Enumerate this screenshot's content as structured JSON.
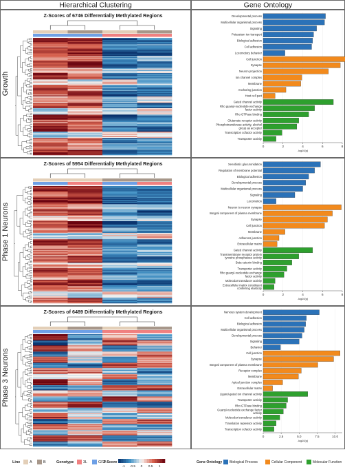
{
  "header": {
    "left": "Hierarchical Clustering",
    "right": "Gene Ontology"
  },
  "chart_data": [
    {
      "type": "heatmap",
      "panel_label": "Growth",
      "title": "Z-Scores of 6746 Differentially Methylated Regions",
      "columns": [
        {
          "line": "A",
          "genotype": "3L"
        },
        {
          "line": "B",
          "genotype": "3L"
        },
        {
          "line": "A",
          "genotype": "GFP"
        },
        {
          "line": "B",
          "genotype": "GFP"
        }
      ],
      "column_order": [
        2,
        3,
        0,
        1
      ],
      "row_profiles": [
        [
          -1.1,
          -0.9,
          1.0,
          1.0
        ],
        [
          -0.8,
          -0.6,
          0.7,
          0.7
        ],
        [
          -1.2,
          -0.9,
          0.8,
          1.1
        ],
        [
          -0.5,
          -0.3,
          0.4,
          0.4
        ],
        [
          -1.0,
          -1.1,
          0.9,
          1.2
        ],
        [
          -0.3,
          -0.2,
          0.3,
          0.2
        ],
        [
          -0.9,
          -0.7,
          1.1,
          0.6
        ],
        [
          0.2,
          -0.4,
          0.2,
          -0.1
        ],
        [
          -0.6,
          -0.8,
          0.9,
          0.5
        ],
        [
          -1.2,
          -1.0,
          0.7,
          1.2
        ],
        [
          -0.4,
          -0.1,
          0.3,
          0.2
        ],
        [
          -0.7,
          -0.9,
          0.8,
          0.8
        ],
        [
          -0.2,
          0.1,
          -0.2,
          0.3
        ],
        [
          -1.1,
          -0.8,
          1.0,
          0.9
        ],
        [
          -0.6,
          -0.5,
          0.6,
          0.5
        ],
        [
          -0.9,
          -1.1,
          1.2,
          0.8
        ],
        [
          0.3,
          0.2,
          -0.3,
          -0.2
        ],
        [
          -0.8,
          -0.6,
          0.7,
          0.7
        ],
        [
          -0.4,
          -0.7,
          0.6,
          0.5
        ],
        [
          -1.0,
          -0.9,
          0.9,
          1.0
        ]
      ]
    },
    {
      "type": "heatmap",
      "panel_label": "Phase 1 Neurons",
      "title": "Z-Scores of 5954 Differentially Methylated Regions",
      "columns": [
        {
          "line": "A",
          "genotype": "3L"
        },
        {
          "line": "B",
          "genotype": "3L"
        },
        {
          "line": "A",
          "genotype": "GFP"
        },
        {
          "line": "B",
          "genotype": "GFP"
        }
      ],
      "column_order": [
        2,
        0,
        3,
        1
      ],
      "row_profiles": [
        [
          1.0,
          -1.0,
          0.9,
          -0.9
        ],
        [
          0.8,
          -0.7,
          0.7,
          -0.8
        ],
        [
          1.1,
          -0.9,
          1.0,
          -1.1
        ],
        [
          0.5,
          -0.4,
          0.4,
          -0.5
        ],
        [
          0.9,
          -1.1,
          0.8,
          -0.6
        ],
        [
          0.3,
          -0.2,
          0.2,
          -0.3
        ],
        [
          1.2,
          -0.8,
          0.9,
          -1.0
        ],
        [
          0.6,
          -0.6,
          0.5,
          -0.5
        ],
        [
          -0.2,
          0.3,
          -0.2,
          0.1
        ],
        [
          0.9,
          -0.9,
          1.1,
          -0.8
        ],
        [
          0.7,
          -0.5,
          0.6,
          -0.7
        ],
        [
          0.4,
          -0.3,
          0.5,
          -0.6
        ],
        [
          1.0,
          -1.0,
          0.8,
          -0.9
        ],
        [
          0.2,
          -0.1,
          0.3,
          -0.4
        ],
        [
          0.8,
          -0.8,
          0.9,
          -0.9
        ],
        [
          0.6,
          -0.7,
          0.4,
          -0.3
        ],
        [
          1.1,
          -1.1,
          1.0,
          -1.0
        ],
        [
          0.5,
          -0.5,
          0.6,
          -0.6
        ],
        [
          -0.3,
          0.2,
          -0.1,
          0.2
        ],
        [
          0.9,
          -0.8,
          0.7,
          -0.8
        ]
      ]
    },
    {
      "type": "heatmap",
      "panel_label": "Phase 3 Neurons",
      "title": "Z-Scores of 6489 Differentially Methylated Regions",
      "columns": [
        {
          "line": "A",
          "genotype": "3L"
        },
        {
          "line": "B",
          "genotype": "3L"
        },
        {
          "line": "A",
          "genotype": "GFP"
        },
        {
          "line": "B",
          "genotype": "GFP"
        }
      ],
      "column_order": [
        2,
        3,
        0,
        1
      ],
      "row_profiles": [
        [
          0.3,
          -0.6,
          1.0,
          -0.7
        ],
        [
          0.8,
          0.5,
          -1.0,
          -0.3
        ],
        [
          -0.7,
          -0.5,
          0.9,
          0.4
        ],
        [
          0.2,
          0.6,
          -0.8,
          0.1
        ],
        [
          -1.0,
          0.3,
          0.8,
          -0.1
        ],
        [
          0.9,
          0.7,
          -0.7,
          -0.9
        ],
        [
          -0.4,
          -0.8,
          0.6,
          0.6
        ],
        [
          0.5,
          -0.2,
          -0.3,
          0.1
        ],
        [
          -0.9,
          -0.6,
          1.1,
          0.4
        ],
        [
          0.6,
          0.9,
          -0.9,
          -0.6
        ],
        [
          -0.2,
          -0.5,
          0.3,
          0.4
        ],
        [
          1.0,
          0.4,
          -0.6,
          -0.8
        ],
        [
          -0.8,
          -0.9,
          0.7,
          1.0
        ],
        [
          0.1,
          0.5,
          -0.4,
          -0.2
        ],
        [
          -0.6,
          -0.3,
          0.9,
          0.1
        ],
        [
          0.7,
          0.8,
          -1.0,
          -0.5
        ],
        [
          -0.5,
          -0.7,
          0.5,
          0.7
        ],
        [
          0.4,
          0.2,
          -0.6,
          0.0
        ],
        [
          -1.0,
          -0.8,
          1.0,
          0.8
        ],
        [
          0.6,
          0.7,
          -0.8,
          -0.5
        ]
      ]
    },
    {
      "type": "bar",
      "orientation": "horizontal",
      "panel_label": "Growth",
      "xlabel": "-log10(p)",
      "xlim": [
        0,
        8
      ],
      "xticks": [
        0,
        2,
        4,
        6,
        8
      ],
      "categories": [
        {
          "label": "Developmental process",
          "value": 6.3,
          "group": "bp"
        },
        {
          "label": "Multicellular organismal process",
          "value": 6.2,
          "group": "bp"
        },
        {
          "label": "Signaling",
          "value": 5.4,
          "group": "bp"
        },
        {
          "label": "Potassium ion transport",
          "value": 5.1,
          "group": "bp"
        },
        {
          "label": "Biological adhesion",
          "value": 5.0,
          "group": "bp"
        },
        {
          "label": "Cell adhesion",
          "value": 4.9,
          "group": "bp"
        },
        {
          "label": "Locomotory behavior",
          "value": 2.2,
          "group": "bp"
        },
        {
          "label": "Cell junction",
          "value": 8.3,
          "group": "cc"
        },
        {
          "label": "Synapse",
          "value": 7.8,
          "group": "cc"
        },
        {
          "label": "Neuron projection",
          "value": 6.6,
          "group": "cc"
        },
        {
          "label": "Ion channel complex",
          "value": 3.9,
          "group": "cc"
        },
        {
          "label": "Membrane",
          "value": 3.8,
          "group": "cc"
        },
        {
          "label": "Anchoring junction",
          "value": 2.3,
          "group": "cc"
        },
        {
          "label": "Host cell part",
          "value": 1.2,
          "group": "cc"
        },
        {
          "label": "Gated channel activity",
          "value": 7.1,
          "group": "mf"
        },
        {
          "label": "Rho guanyl-nucleotide exchange factor activity",
          "value": 5.2,
          "group": "mf"
        },
        {
          "label": "Rho GTPase binding",
          "value": 4.6,
          "group": "mf"
        },
        {
          "label": "Glutamate receptor activity",
          "value": 3.6,
          "group": "mf"
        },
        {
          "label": "Phosphotransferase activity, alcohol group as acceptor",
          "value": 3.4,
          "group": "mf"
        },
        {
          "label": "Transcription cofactor activity",
          "value": 1.9,
          "group": "mf"
        },
        {
          "label": "Transporter activity",
          "value": 1.3,
          "group": "mf"
        }
      ]
    },
    {
      "type": "bar",
      "orientation": "horizontal",
      "panel_label": "Phase 1 Neurons",
      "xlabel": "-log10(p)",
      "xlim": [
        0,
        8
      ],
      "xticks": [
        0,
        2,
        4,
        6,
        8
      ],
      "categories": [
        {
          "label": "Xenobiotic glucuronidation",
          "value": 5.8,
          "group": "bp"
        },
        {
          "label": "Regulation of membrane potential",
          "value": 5.2,
          "group": "bp"
        },
        {
          "label": "Biological adhesion",
          "value": 4.6,
          "group": "bp"
        },
        {
          "label": "Developmental process",
          "value": 4.3,
          "group": "bp"
        },
        {
          "label": "Multicellular organismal process",
          "value": 4.0,
          "group": "bp"
        },
        {
          "label": "Signaling",
          "value": 3.2,
          "group": "bp"
        },
        {
          "label": "Locomotion",
          "value": 1.3,
          "group": "bp"
        },
        {
          "label": "Neuron to neuron synapse",
          "value": 7.9,
          "group": "cc"
        },
        {
          "label": "Integral component of plasma membrane",
          "value": 7.0,
          "group": "cc"
        },
        {
          "label": "Synapse",
          "value": 6.5,
          "group": "cc"
        },
        {
          "label": "Cell junction",
          "value": 6.2,
          "group": "cc"
        },
        {
          "label": "Membrane",
          "value": 2.2,
          "group": "cc"
        },
        {
          "label": "Adherens junction",
          "value": 1.6,
          "group": "cc"
        },
        {
          "label": "Extracellular matrix",
          "value": 1.4,
          "group": "cc"
        },
        {
          "label": "Gated channel activity",
          "value": 5.0,
          "group": "mf"
        },
        {
          "label": "Transmembrane receptor protein tyrosine phosphatase activity",
          "value": 3.6,
          "group": "mf"
        },
        {
          "label": "Beta-catenin binding",
          "value": 2.9,
          "group": "mf"
        },
        {
          "label": "Transporter activity",
          "value": 2.4,
          "group": "mf"
        },
        {
          "label": "Rho guanyl-nucleotide exchange factor activity",
          "value": 2.1,
          "group": "mf"
        },
        {
          "label": "Molecular transducer activity",
          "value": 1.2,
          "group": "mf"
        },
        {
          "label": "Extracellular matrix constituent conferring elasticity",
          "value": 1.1,
          "group": "mf"
        }
      ]
    },
    {
      "type": "bar",
      "orientation": "horizontal",
      "panel_label": "Phase 3 Neurons",
      "xlabel": "-log10(p)",
      "xlim": [
        0,
        11
      ],
      "xticks": [
        0,
        2.5,
        5,
        7.5,
        10
      ],
      "xticklabels": [
        "0",
        "2.5",
        "5.0",
        "7.5",
        "10.0"
      ],
      "categories": [
        {
          "label": "Nervous system development",
          "value": 7.8,
          "group": "bp"
        },
        {
          "label": "Cell adhesion",
          "value": 6.0,
          "group": "bp"
        },
        {
          "label": "Biological adhesion",
          "value": 5.9,
          "group": "bp"
        },
        {
          "label": "Multicellular organismal process",
          "value": 5.7,
          "group": "bp"
        },
        {
          "label": "Developmental process",
          "value": 5.4,
          "group": "bp"
        },
        {
          "label": "Signaling",
          "value": 5.0,
          "group": "bp"
        },
        {
          "label": "Behavior",
          "value": 2.4,
          "group": "bp"
        },
        {
          "label": "Cell junction",
          "value": 10.7,
          "group": "cc"
        },
        {
          "label": "Synapse",
          "value": 9.8,
          "group": "cc"
        },
        {
          "label": "Integral component of plasma membrane",
          "value": 7.6,
          "group": "cc"
        },
        {
          "label": "Receptor complex",
          "value": 5.3,
          "group": "cc"
        },
        {
          "label": "Membrane",
          "value": 4.9,
          "group": "cc"
        },
        {
          "label": "Apical junction complex",
          "value": 2.7,
          "group": "cc"
        },
        {
          "label": "Extracellular matrix",
          "value": 1.3,
          "group": "cc"
        },
        {
          "label": "Ligand-gated ion channel activity",
          "value": 6.2,
          "group": "mf"
        },
        {
          "label": "Transporter activity",
          "value": 3.4,
          "group": "mf"
        },
        {
          "label": "Rho GTPase binding",
          "value": 3.2,
          "group": "mf"
        },
        {
          "label": "Guanyl-nucleotide exchange factor activity",
          "value": 2.8,
          "group": "mf"
        },
        {
          "label": "Molecular transducer activity",
          "value": 2.3,
          "group": "mf"
        },
        {
          "label": "Translation repressor activity",
          "value": 1.8,
          "group": "mf"
        },
        {
          "label": "Transcription cofactor activity",
          "value": 1.5,
          "group": "mf"
        }
      ]
    }
  ],
  "legend": {
    "line_title": "Line",
    "line_items": [
      {
        "label": "A",
        "color": "#e3cfb8"
      },
      {
        "label": "B",
        "color": "#a7978a"
      }
    ],
    "genotype_title": "Genotype",
    "genotype_items": [
      {
        "label": "3L",
        "color": "#f08080"
      },
      {
        "label": "GFP",
        "color": "#6ea0e6"
      }
    ],
    "zscore_title": "Z-Score",
    "zscore_ticks": [
      "-1",
      "-0.5",
      "0",
      "0.5",
      "1"
    ],
    "go_title": "Gene Ontology",
    "go_items": [
      {
        "key": "bp",
        "label": "Biological Process",
        "color": "#2b72b8"
      },
      {
        "key": "cc",
        "label": "Cellular Component",
        "color": "#f28a1d"
      },
      {
        "key": "mf",
        "label": "Molecular Function",
        "color": "#2ea02e"
      }
    ]
  }
}
